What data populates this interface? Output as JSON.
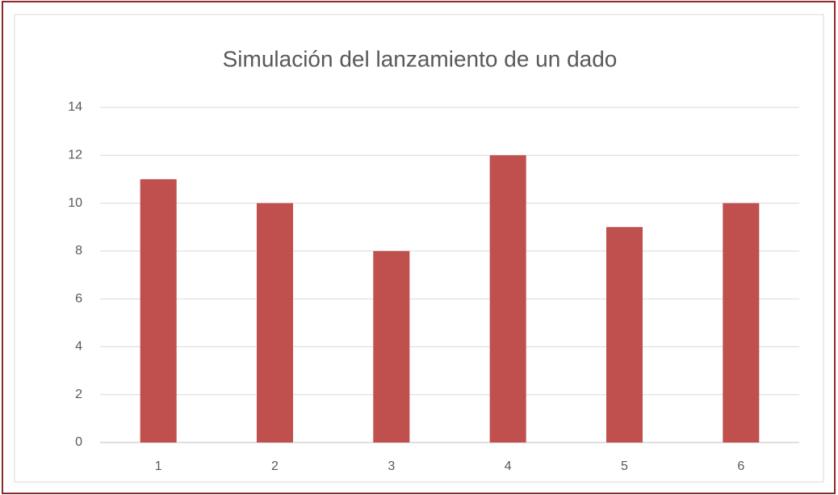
{
  "chart_data": {
    "type": "bar",
    "title": "Simulación del lanzamiento de un dado",
    "categories": [
      "1",
      "2",
      "3",
      "4",
      "5",
      "6"
    ],
    "values": [
      11,
      10,
      8,
      12,
      9,
      10
    ],
    "color": "#c0504d",
    "ylim": [
      0,
      14
    ],
    "yticks": [
      0,
      2,
      4,
      6,
      8,
      10,
      12,
      14
    ],
    "grid": true
  }
}
